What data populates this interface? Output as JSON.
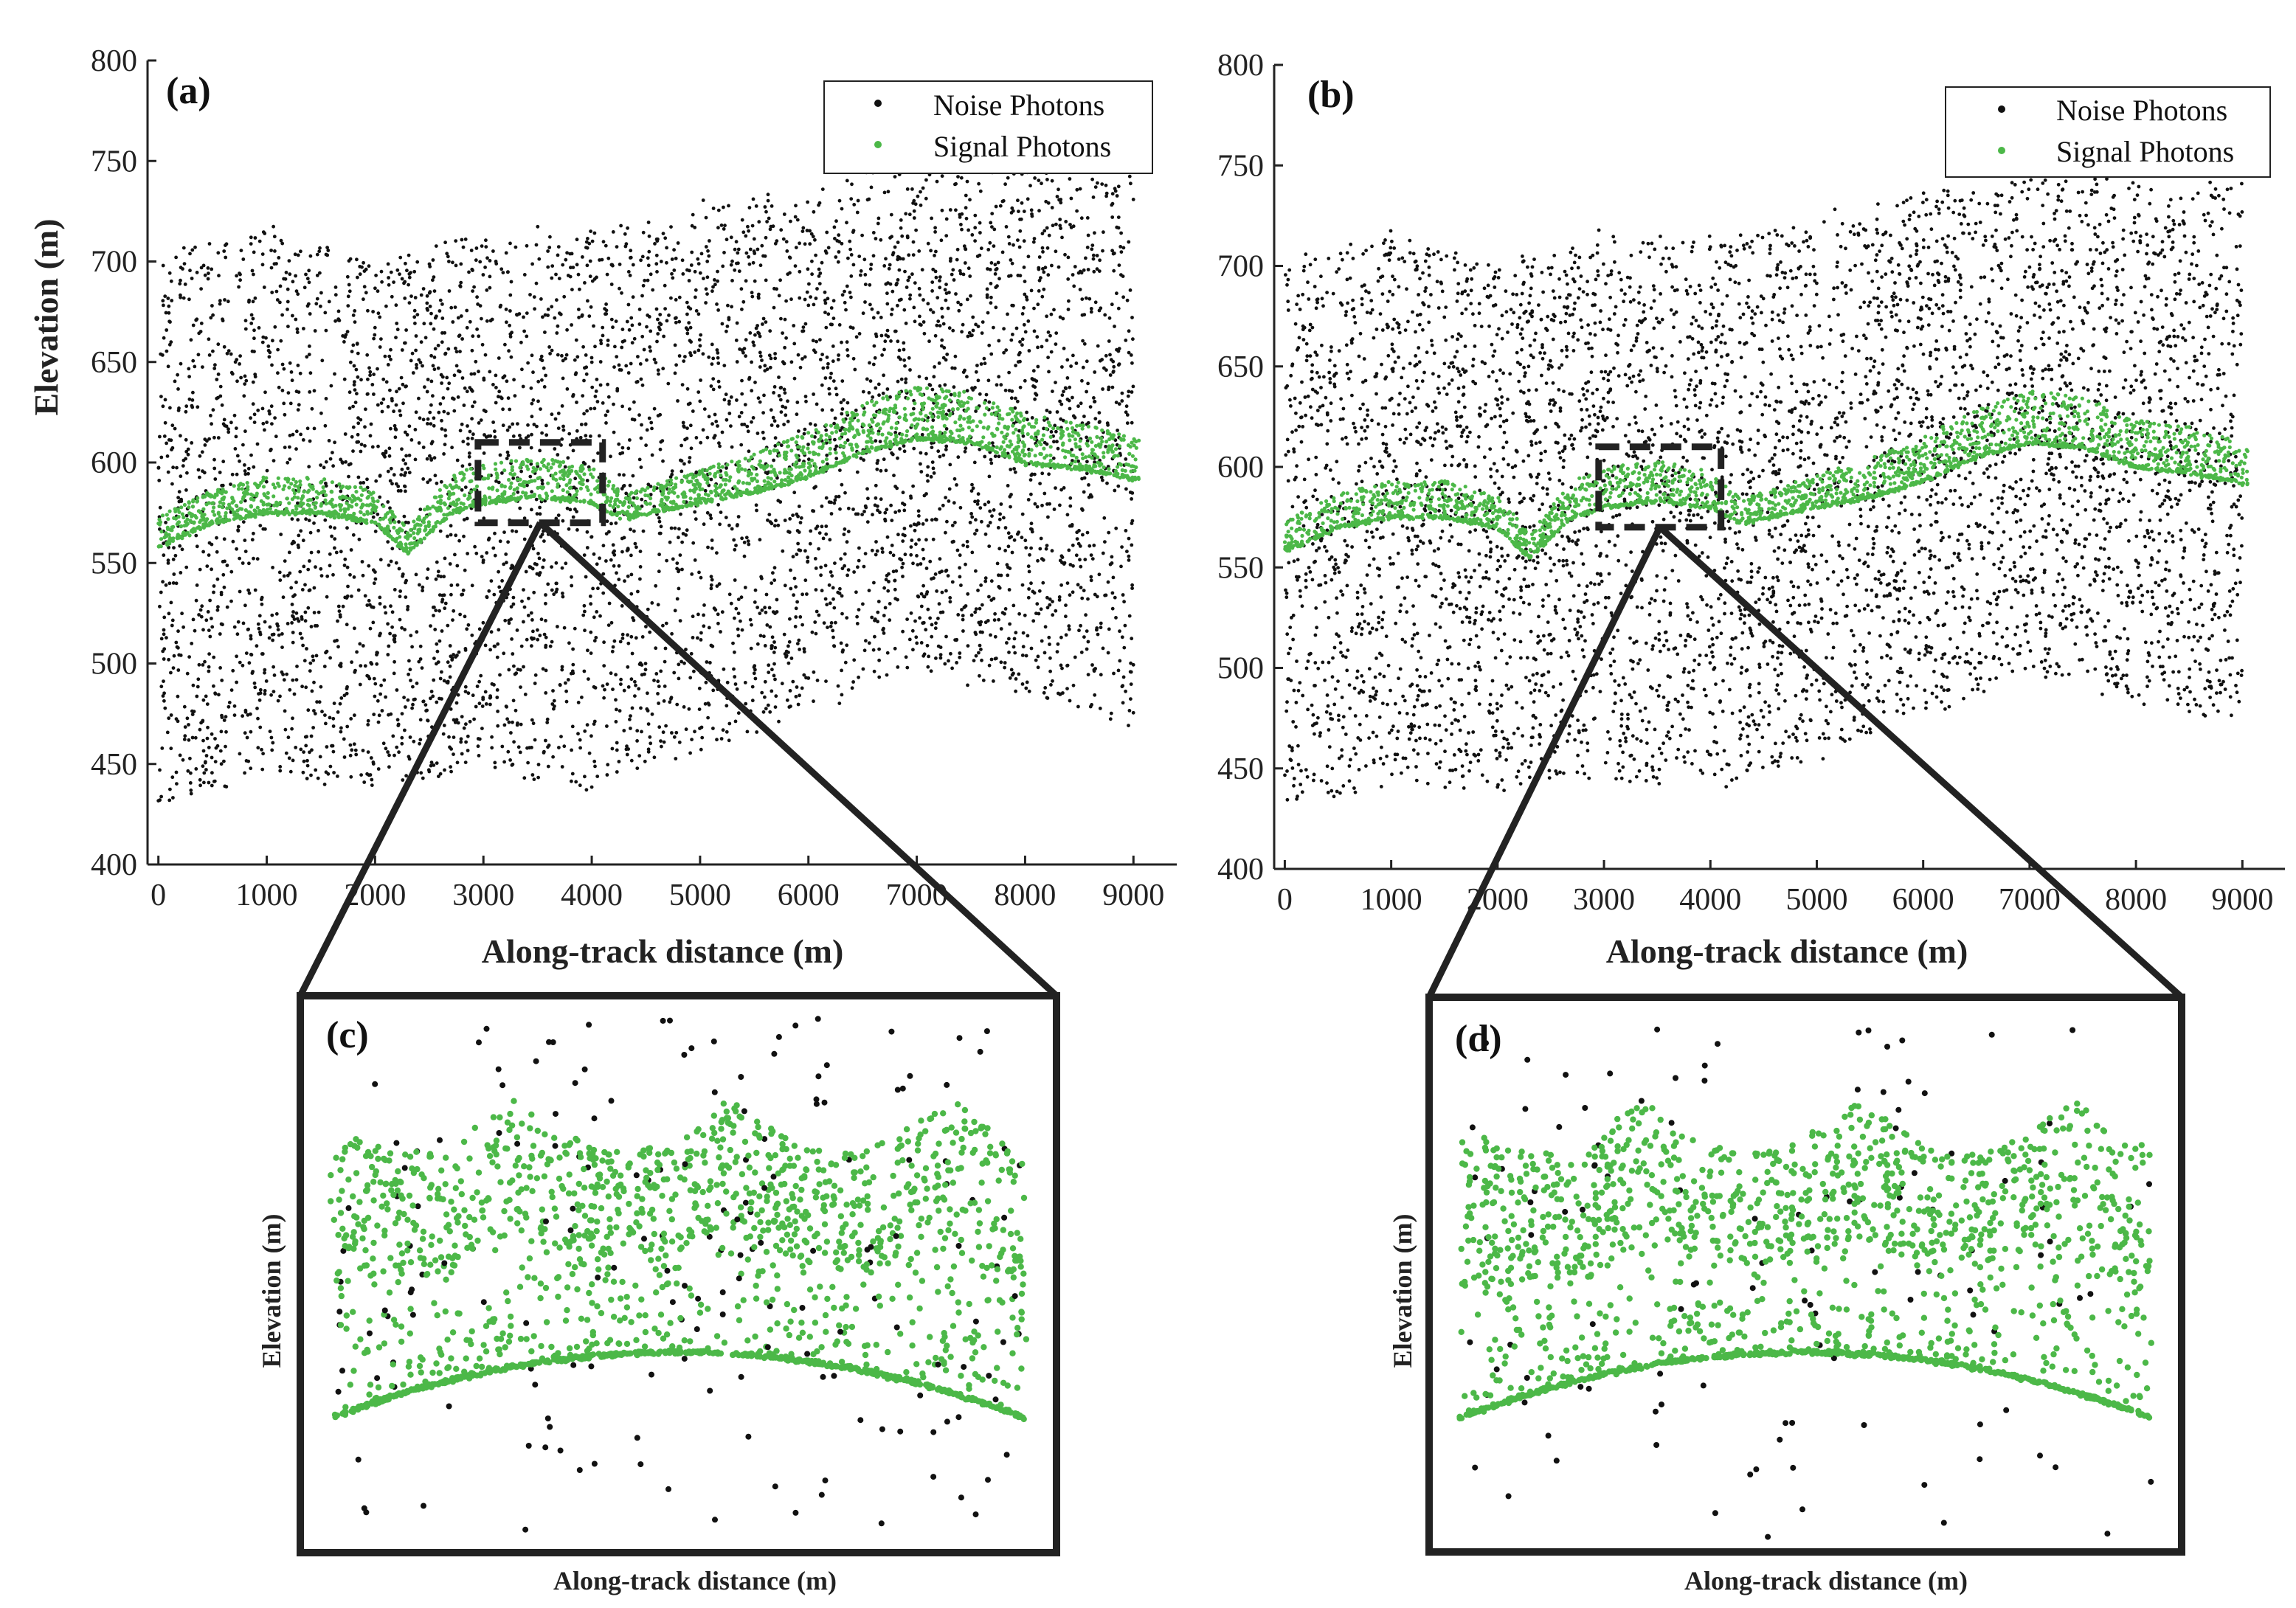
{
  "chart_data": [
    {
      "id": "a",
      "type": "scatter",
      "panel_label": "(a)",
      "xlabel": "Along-track distance (m)",
      "ylabel": "Elevation (m)",
      "xlim": [
        -100,
        9400
      ],
      "ylim": [
        400,
        800
      ],
      "xticks": [
        "0",
        "1000",
        "2000",
        "3000",
        "4000",
        "5000",
        "6000",
        "7000",
        "8000",
        "9000"
      ],
      "yticks": [
        "400",
        "450",
        "500",
        "550",
        "600",
        "650",
        "700",
        "750",
        "800"
      ],
      "legend": {
        "position": "top-right",
        "entries": [
          "Noise Photons",
          "Signal Photons"
        ]
      },
      "zoom_box_x": [
        2950,
        4100
      ],
      "zoom_box_y": [
        570,
        610
      ],
      "series": [
        {
          "name": "Noise Photons",
          "color": "#111111",
          "band_bottom_x": [
            0,
            1000,
            2000,
            3000,
            4000,
            5000,
            6000,
            7000,
            8000,
            9000
          ],
          "band_bottom_y": [
            430,
            445,
            440,
            445,
            440,
            455,
            475,
            500,
            485,
            470
          ],
          "band_top_x": [
            0,
            1000,
            2000,
            3000,
            4000,
            5000,
            6000,
            7000,
            8000,
            9000
          ],
          "band_top_y": [
            705,
            715,
            700,
            715,
            712,
            725,
            735,
            745,
            745,
            740
          ]
        },
        {
          "name": "Signal Photons",
          "color": "#4cb848",
          "ground_x": [
            0,
            500,
            1000,
            1500,
            2000,
            2300,
            2700,
            3000,
            3500,
            4000,
            4300,
            5000,
            5500,
            6000,
            6500,
            7000,
            7500,
            8000,
            8500,
            9000
          ],
          "ground_y": [
            558,
            570,
            575,
            575,
            570,
            555,
            575,
            580,
            583,
            580,
            572,
            580,
            585,
            593,
            605,
            612,
            610,
            600,
            597,
            592
          ],
          "canopy_height": [
            15,
            17,
            18,
            18,
            16,
            12,
            18,
            20,
            20,
            18,
            12,
            16,
            20,
            22,
            24,
            26,
            25,
            24,
            23,
            20
          ]
        }
      ]
    },
    {
      "id": "b",
      "type": "scatter",
      "panel_label": "(b)",
      "xlabel": "Along-track distance (m)",
      "ylabel": "",
      "xlim": [
        -100,
        9400
      ],
      "ylim": [
        400,
        800
      ],
      "xticks": [
        "0",
        "1000",
        "2000",
        "3000",
        "4000",
        "5000",
        "6000",
        "7000",
        "8000",
        "9000"
      ],
      "yticks": [
        "400",
        "450",
        "500",
        "550",
        "600",
        "650",
        "700",
        "750",
        "800"
      ],
      "legend": {
        "position": "top-right",
        "entries": [
          "Noise Photons",
          "Signal Photons"
        ]
      },
      "zoom_box_x": [
        2950,
        4100
      ],
      "zoom_box_y": [
        570,
        610
      ],
      "series": [
        {
          "name": "Noise Photons",
          "color": "#111111",
          "band_bottom_x": [
            0,
            1000,
            2000,
            3000,
            4000,
            5000,
            6000,
            7000,
            8000,
            9000
          ],
          "band_bottom_y": [
            430,
            445,
            440,
            445,
            440,
            455,
            475,
            500,
            485,
            470
          ],
          "band_top_x": [
            0,
            1000,
            2000,
            3000,
            4000,
            5000,
            6000,
            7000,
            8000,
            9000
          ],
          "band_top_y": [
            705,
            715,
            700,
            715,
            712,
            725,
            735,
            745,
            745,
            740
          ]
        },
        {
          "name": "Signal Photons",
          "color": "#4cb848",
          "ground_x": [
            0,
            500,
            1000,
            1500,
            2000,
            2300,
            2700,
            3000,
            3500,
            4000,
            4300,
            5000,
            5500,
            6000,
            6500,
            7000,
            7500,
            8000,
            8500,
            9000
          ],
          "ground_y": [
            558,
            570,
            575,
            575,
            570,
            555,
            575,
            580,
            583,
            580,
            572,
            580,
            585,
            593,
            605,
            612,
            610,
            600,
            597,
            592
          ],
          "canopy_height": [
            15,
            17,
            18,
            18,
            16,
            12,
            18,
            20,
            20,
            18,
            12,
            16,
            20,
            22,
            24,
            26,
            25,
            24,
            23,
            20
          ]
        }
      ]
    },
    {
      "id": "c",
      "type": "scatter",
      "panel_label": "(c)",
      "xlabel": "Along-track distance (m)",
      "ylabel": "Elevation (m)",
      "zoom_of": "a",
      "has_ticks": false,
      "series": [
        {
          "name": "Noise Photons",
          "color": "#111111"
        },
        {
          "name": "Signal Photons",
          "color": "#4cb848"
        }
      ]
    },
    {
      "id": "d",
      "type": "scatter",
      "panel_label": "(d)",
      "xlabel": "Along-track distance (m)",
      "ylabel": "Elevation (m)",
      "zoom_of": "b",
      "has_ticks": false,
      "series": [
        {
          "name": "Noise Photons",
          "color": "#111111"
        },
        {
          "name": "Signal Photons",
          "color": "#4cb848"
        }
      ]
    }
  ]
}
